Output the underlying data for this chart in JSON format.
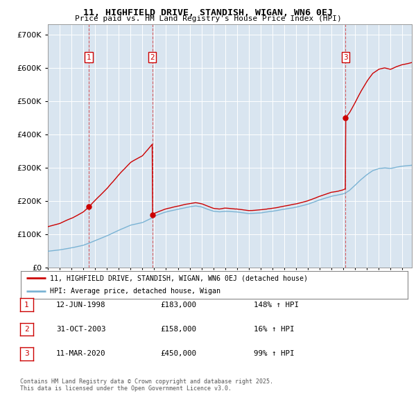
{
  "title1": "11, HIGHFIELD DRIVE, STANDISH, WIGAN, WN6 0EJ",
  "title2": "Price paid vs. HM Land Registry's House Price Index (HPI)",
  "background_color": "#ffffff",
  "plot_bg_color": "#d9e5f0",
  "grid_color": "#ffffff",
  "sale_labels": [
    "1",
    "2",
    "3"
  ],
  "legend_line1": "11, HIGHFIELD DRIVE, STANDISH, WIGAN, WN6 0EJ (detached house)",
  "legend_line2": "HPI: Average price, detached house, Wigan",
  "table_data": [
    {
      "num": "1",
      "date": "12-JUN-1998",
      "price": "£183,000",
      "change": "148% ↑ HPI"
    },
    {
      "num": "2",
      "date": "31-OCT-2003",
      "price": "£158,000",
      "change": "16% ↑ HPI"
    },
    {
      "num": "3",
      "date": "11-MAR-2020",
      "price": "£450,000",
      "change": "99% ↑ HPI"
    }
  ],
  "footer": "Contains HM Land Registry data © Crown copyright and database right 2025.\nThis data is licensed under the Open Government Licence v3.0.",
  "hpi_color": "#7ab3d4",
  "price_color": "#cc0000",
  "ylim": [
    0,
    730000
  ],
  "xlim_start": 1995.0,
  "xlim_end": 2025.8,
  "sale_times": [
    1998.458,
    2003.833,
    2020.194
  ],
  "sale_prices": [
    183000,
    158000,
    450000
  ]
}
